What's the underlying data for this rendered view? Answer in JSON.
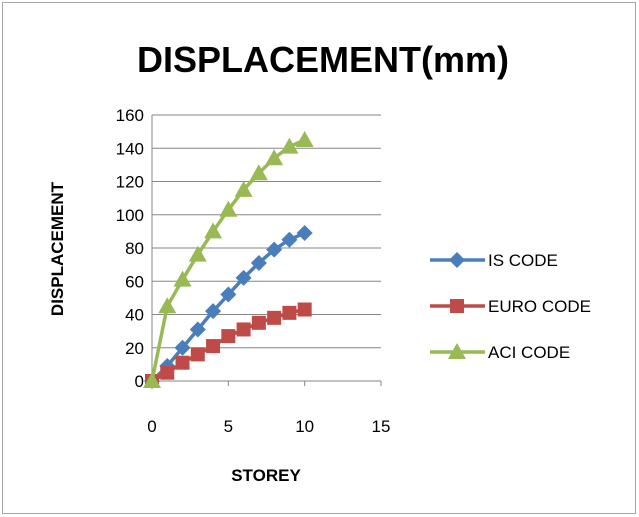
{
  "chart_data": {
    "type": "line",
    "title": "DISPLACEMENT(mm)",
    "xlabel": "STOREY",
    "ylabel": "DISPLACEMENT",
    "xlim": [
      0,
      15
    ],
    "ylim": [
      0,
      160
    ],
    "x_ticks": [
      "0",
      "5",
      "10",
      "15"
    ],
    "y_ticks": [
      "0",
      "20",
      "40",
      "60",
      "80",
      "100",
      "120",
      "140",
      "160"
    ],
    "grid": "horizontal",
    "legend_position": "right",
    "series": [
      {
        "name": "IS CODE",
        "color": "#4a7ebb",
        "marker": "diamond",
        "x": [
          0,
          1,
          2,
          3,
          4,
          5,
          6,
          7,
          8,
          9,
          10
        ],
        "values": [
          0,
          9,
          20,
          31,
          42,
          52,
          62,
          71,
          79,
          85,
          89
        ]
      },
      {
        "name": "EURO CODE",
        "color": "#be4b48",
        "marker": "square",
        "x": [
          0,
          1,
          2,
          3,
          4,
          5,
          6,
          7,
          8,
          9,
          10
        ],
        "values": [
          0,
          5,
          11,
          16,
          21,
          27,
          31,
          35,
          38,
          41,
          43
        ]
      },
      {
        "name": "ACI CODE",
        "color": "#98b954",
        "marker": "triangle",
        "x": [
          0,
          1,
          2,
          3,
          4,
          5,
          6,
          7,
          8,
          9,
          10
        ],
        "values": [
          0,
          45,
          61,
          76,
          90,
          103,
          115,
          125,
          134,
          141,
          145
        ]
      }
    ]
  }
}
